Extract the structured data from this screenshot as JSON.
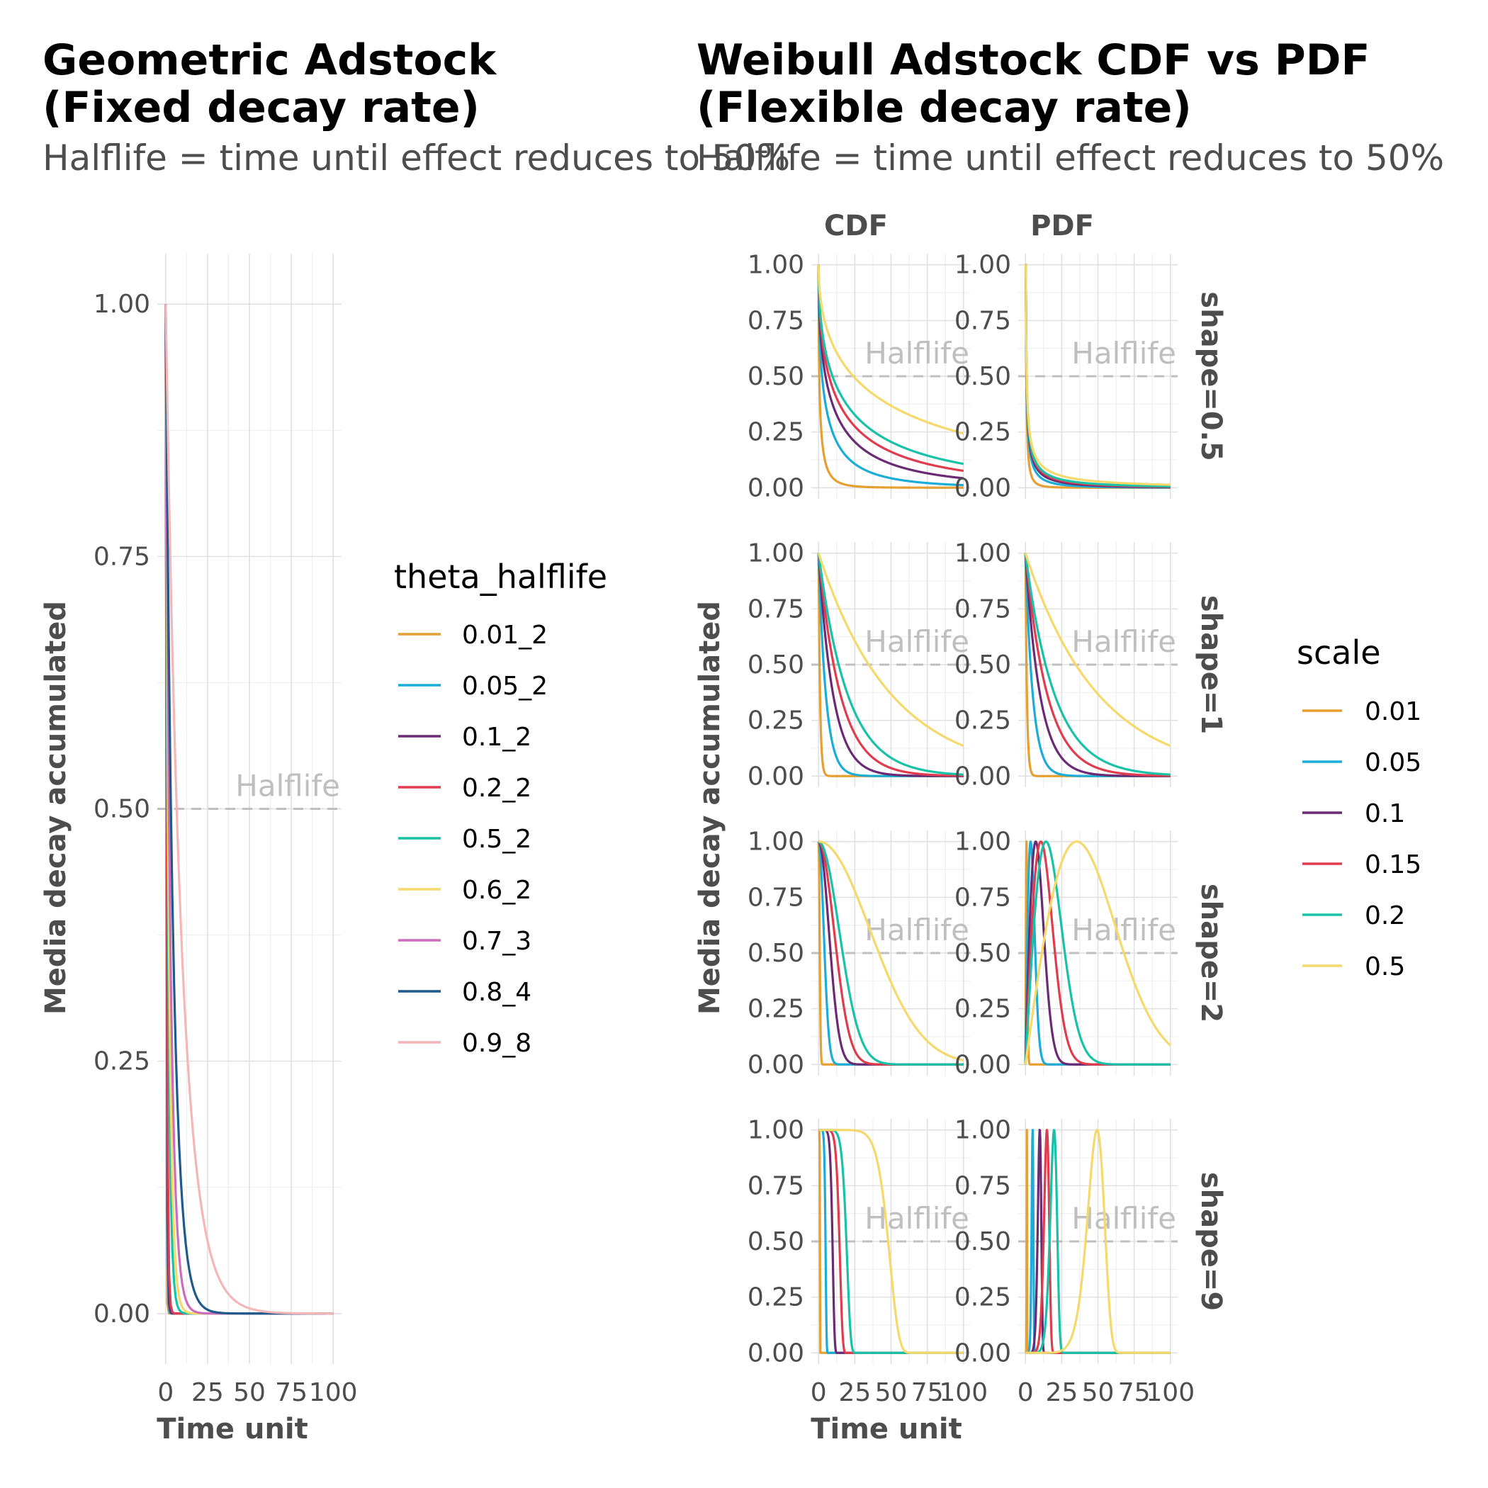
{
  "left_chart": {
    "title_line1": "Geometric Adstock",
    "title_line2": "(Fixed decay rate)",
    "subtitle": "Halflife = time until effect reduces to 50%",
    "xlabel": "Time unit",
    "ylabel": "Media decay accumulated",
    "halflife_label": "Halflife",
    "legend_title": "theta_halflife"
  },
  "right_chart": {
    "title_line1": "Weibull Adstock CDF vs PDF",
    "title_line2": "(Flexible decay rate)",
    "subtitle": "Halflife = time until effect reduces to 50%",
    "xlabel": "Time unit",
    "ylabel": "Media decay accumulated",
    "halflife_label": "Halflife",
    "col_strips": [
      "CDF",
      "PDF"
    ],
    "row_strips": [
      "shape=0.5",
      "shape=1",
      "shape=2",
      "shape=9"
    ],
    "legend_title": "scale"
  },
  "colors": {
    "orange": "#E69F31",
    "cyan": "#1BADD7",
    "purple": "#6A2B74",
    "red": "#E03C4D",
    "teal": "#19C2A6",
    "yellow": "#F6D96B",
    "pink": "#CC6DBC",
    "navy": "#1E5A8C",
    "lightpink": "#F4B6B7"
  },
  "chart_data": [
    {
      "type": "line",
      "title": "Geometric Adstock (Fixed decay rate)",
      "subtitle": "Halflife = time until effect reduces to 50%",
      "xlabel": "Time unit",
      "ylabel": "Media decay accumulated",
      "xlim": [
        0,
        100
      ],
      "ylim": [
        0,
        1
      ],
      "x_ticks": [
        "0",
        "25",
        "50",
        "75",
        "100"
      ],
      "y_ticks": [
        "0.00",
        "0.25",
        "0.50",
        "0.75",
        "1.00"
      ],
      "reference_line": {
        "y": 0.5,
        "style": "dashed",
        "label": "Halflife"
      },
      "legend": {
        "title": "theta_halflife",
        "position": "right"
      },
      "series_rule": "y = theta^x, x = 0..100",
      "series": [
        {
          "name": "0.01_2",
          "theta": 0.01,
          "color": "#E69F31"
        },
        {
          "name": "0.05_2",
          "theta": 0.05,
          "color": "#1BADD7"
        },
        {
          "name": "0.1_2",
          "theta": 0.1,
          "color": "#6A2B74"
        },
        {
          "name": "0.2_2",
          "theta": 0.2,
          "color": "#E03C4D"
        },
        {
          "name": "0.5_2",
          "theta": 0.5,
          "color": "#19C2A6"
        },
        {
          "name": "0.6_2",
          "theta": 0.6,
          "color": "#F6D96B"
        },
        {
          "name": "0.7_3",
          "theta": 0.7,
          "color": "#CC6DBC"
        },
        {
          "name": "0.8_4",
          "theta": 0.8,
          "color": "#1E5A8C"
        },
        {
          "name": "0.9_8",
          "theta": 0.9,
          "color": "#F4B6B7"
        }
      ]
    },
    {
      "type": "line",
      "title": "Weibull Adstock CDF vs PDF (Flexible decay rate)",
      "subtitle": "Halflife = time until effect reduces to 50%",
      "xlabel": "Time unit",
      "ylabel": "Media decay accumulated",
      "xlim": [
        0,
        100
      ],
      "ylim": [
        0,
        1
      ],
      "x_ticks": [
        "0",
        "25",
        "50",
        "75",
        "100"
      ],
      "y_ticks": [
        "0.00",
        "0.25",
        "0.50",
        "0.75",
        "1.00"
      ],
      "facet_cols": [
        "CDF",
        "PDF"
      ],
      "facet_rows": [
        "shape=0.5",
        "shape=1",
        "shape=2",
        "shape=9"
      ],
      "shapes": [
        0.5,
        1,
        2,
        9
      ],
      "reference_line": {
        "y": 0.5,
        "style": "dashed",
        "label": "Halflife"
      },
      "legend": {
        "title": "scale",
        "position": "right"
      },
      "series_rule": "CDF: 1 - Weibull CDF; PDF: Weibull density normalized to max 1; Weibull scale = scale * 100",
      "series": [
        {
          "name": "0.01",
          "scale": 0.01,
          "color": "#E69F31"
        },
        {
          "name": "0.05",
          "scale": 0.05,
          "color": "#1BADD7"
        },
        {
          "name": "0.1",
          "scale": 0.1,
          "color": "#6A2B74"
        },
        {
          "name": "0.15",
          "scale": 0.15,
          "color": "#E03C4D"
        },
        {
          "name": "0.2",
          "scale": 0.2,
          "color": "#19C2A6"
        },
        {
          "name": "0.5",
          "scale": 0.5,
          "color": "#F6D96B"
        }
      ]
    }
  ]
}
